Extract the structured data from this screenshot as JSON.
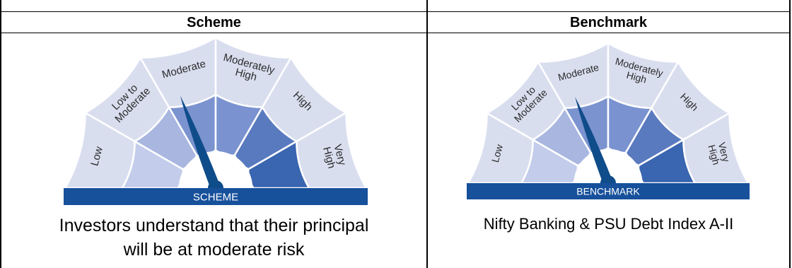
{
  "columns": [
    {
      "header": "Scheme",
      "meter": {
        "level_labels": [
          [
            "Low"
          ],
          [
            "Low to",
            "Moderate"
          ],
          [
            "Moderate"
          ],
          [
            "Moderately",
            "High"
          ],
          [
            "High"
          ],
          [
            "Very",
            "High"
          ]
        ],
        "band_label": "SCHEME",
        "risk_level_index": 2,
        "active_color": "#7b93cf"
      },
      "caption": [
        "Investors understand that their principal",
        "will be at moderate risk"
      ]
    },
    {
      "header": "Benchmark",
      "meter": {
        "level_labels": [
          [
            "Low"
          ],
          [
            "Low to",
            "Moderate"
          ],
          [
            "Moderate"
          ],
          [
            "Moderately",
            "High"
          ],
          [
            "High"
          ],
          [
            "Very",
            "High"
          ]
        ],
        "band_label": "BENCHMARK",
        "risk_level_index": 2,
        "active_color": "#7b93cf"
      },
      "caption": [
        "Nifty Banking & PSU Debt Index A-II"
      ]
    }
  ],
  "colors": {
    "band": "#17509b",
    "needle": "#0f4c8a",
    "outer_ring": "#d9deef",
    "inner_segments": [
      "#c3cceb",
      "#a8b6e0",
      "#8fa3d8",
      "#7a92d0",
      "#5a7ac0",
      "#3a65b0"
    ],
    "label_text": "#2c2c2c"
  }
}
